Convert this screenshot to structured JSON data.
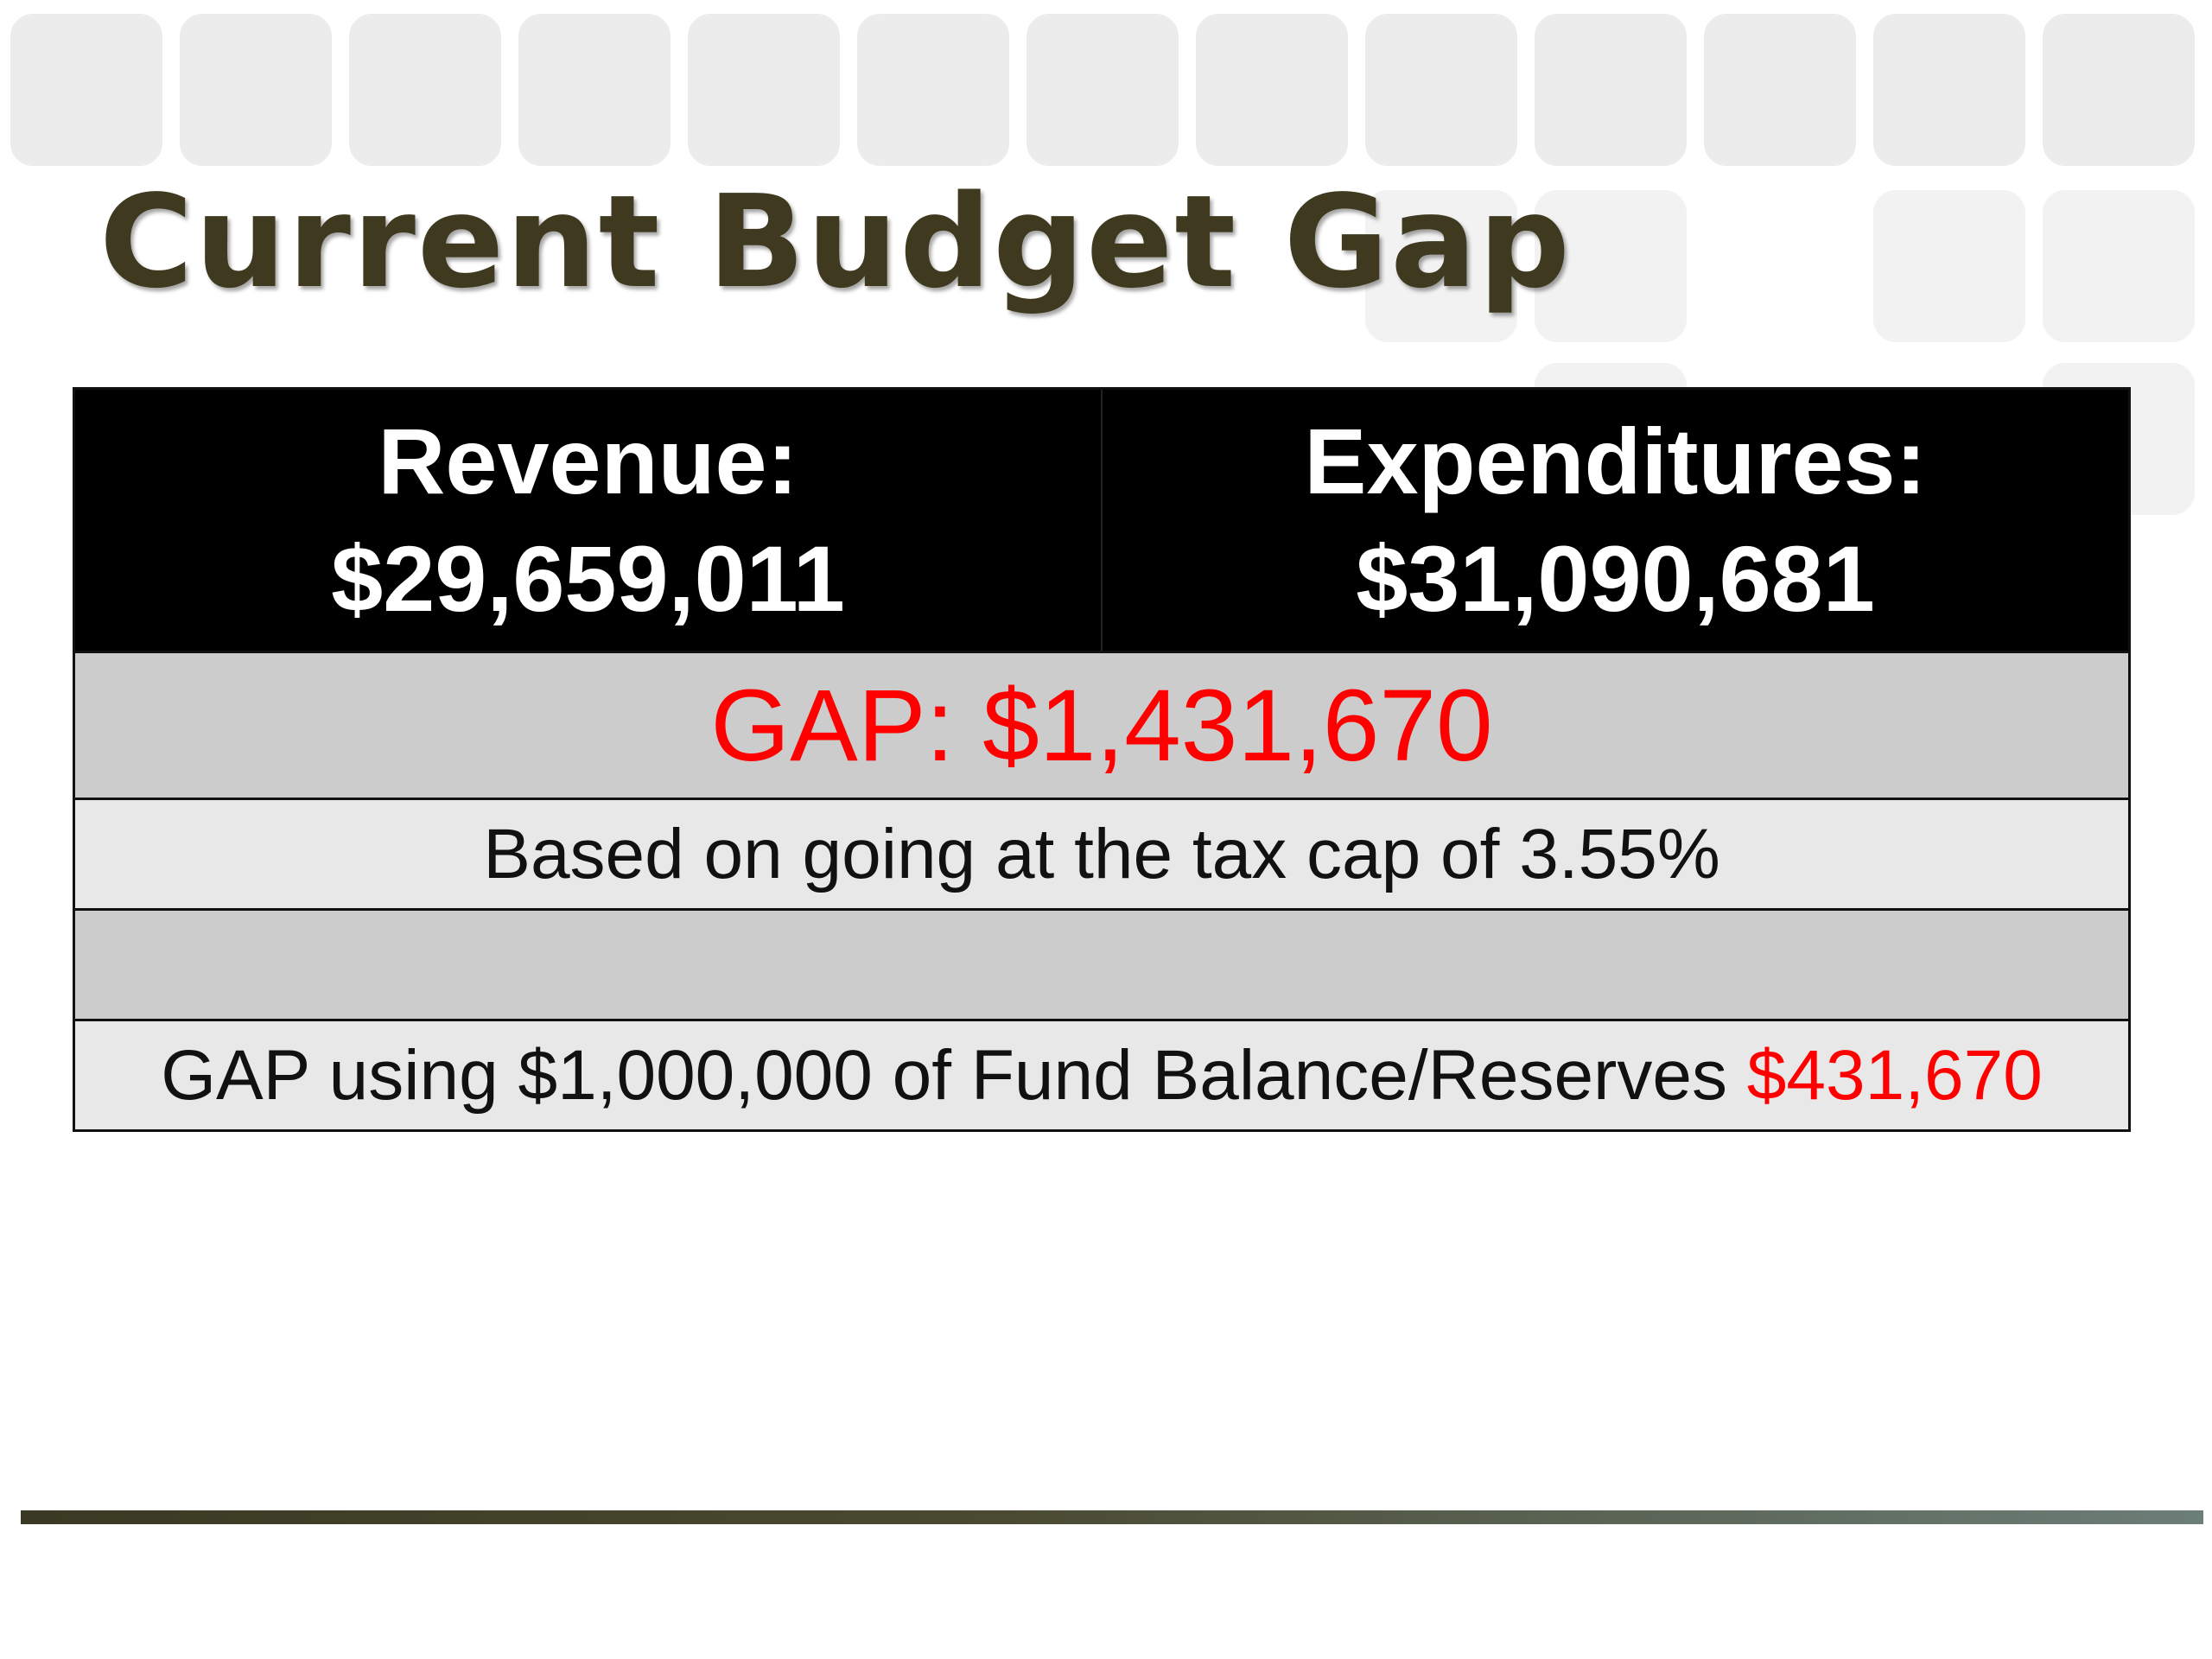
{
  "slide": {
    "title": "Current Budget Gap",
    "table": {
      "revenue_label": "Revenue:",
      "revenue_value": "$29,659,011",
      "expenditures_label": "Expenditures:",
      "expenditures_value": "$31,090,681",
      "gap_text": "GAP: $1,431,670",
      "note_text": "Based on going at the tax cap of 3.55%",
      "fund_text": "GAP using $1,000,000 of Fund Balance/Reserves",
      "fund_value": "$431,670"
    }
  },
  "colors": {
    "title": "#3f3a1f",
    "header_bg": "#000000",
    "gap_text": "#ff0000",
    "row_dark": "#cccccc",
    "row_light": "#e8e8e8"
  }
}
